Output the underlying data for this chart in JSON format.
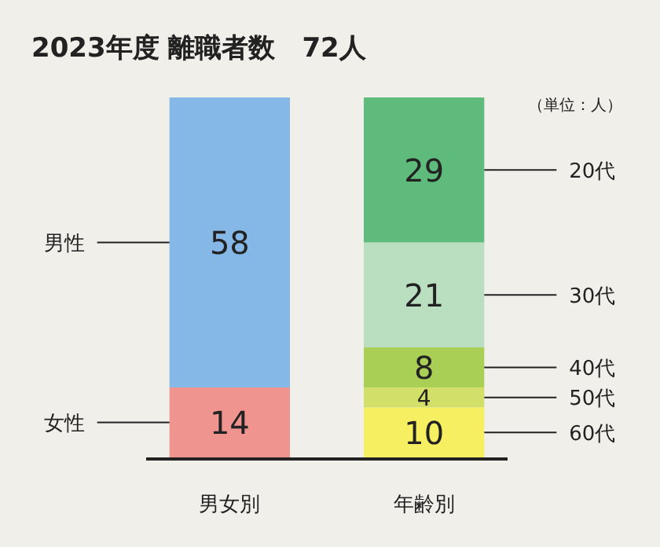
{
  "chart_data": {
    "type": "bar",
    "title": "2023年度 離職者数　72人",
    "annotations": [
      "（単位：人）"
    ],
    "categories": [
      "男女別",
      "年齢別"
    ],
    "stacked": true,
    "data_labels": true,
    "series": [
      {
        "name": "女性",
        "color": "#f09490",
        "values": [
          14,
          null
        ]
      },
      {
        "name": "男性",
        "color": "#85b8e6",
        "values": [
          58,
          null
        ]
      },
      {
        "name": "60代",
        "color": "#f7ef62",
        "values": [
          null,
          10
        ]
      },
      {
        "name": "50代",
        "color": "#d2e06a",
        "values": [
          null,
          4
        ]
      },
      {
        "name": "40代",
        "color": "#a9cf55",
        "values": [
          null,
          8
        ]
      },
      {
        "name": "30代",
        "color": "#b9dfc0",
        "values": [
          null,
          21
        ]
      },
      {
        "name": "20代",
        "color": "#5fbb7c",
        "values": [
          null,
          29
        ]
      }
    ]
  }
}
